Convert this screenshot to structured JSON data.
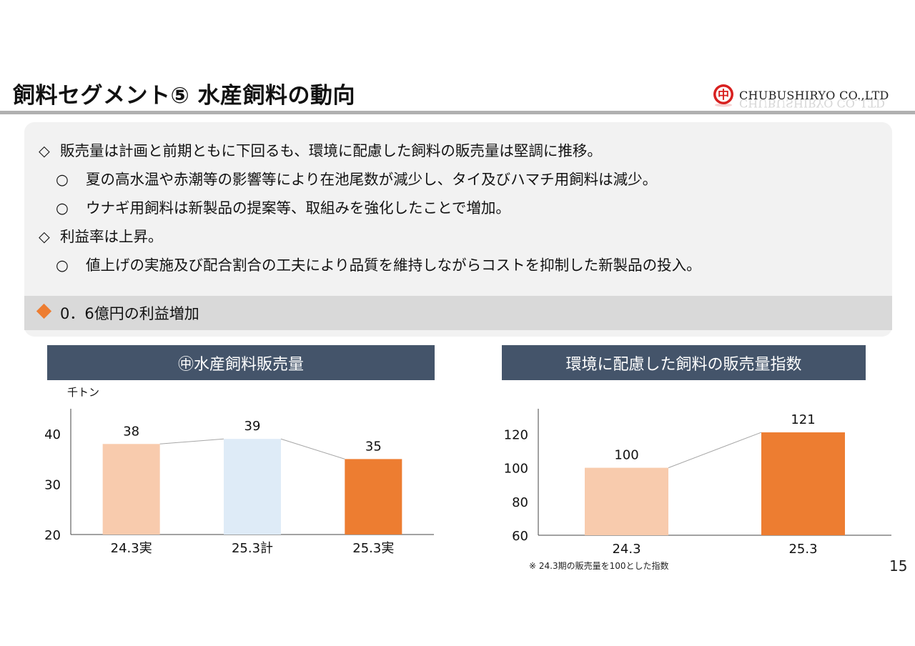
{
  "header": {
    "title": "飼料セグメント⑤ 水産飼料の動向",
    "company": "CHUBUSHIRYO CO.,LTD",
    "logo_glyph": "中",
    "logo_color": "#d8201f"
  },
  "summary": {
    "lines": [
      {
        "marker": "◇",
        "text": "販売量は計画と前期ともに下回るも、環境に配慮した飼料の販売量は堅調に推移。"
      },
      {
        "marker": "○",
        "text": "夏の高水温や赤潮等の影響等により在池尾数が減少し、タイ及びハマチ用飼料は減少。"
      },
      {
        "marker": "○",
        "text": "ウナギ用飼料は新製品の提案等、取組みを強化したことで増加。"
      },
      {
        "marker": "◇",
        "text": "利益率は上昇。"
      },
      {
        "marker": "○",
        "text": "値上げの実施及び配合割合の工夫により品質を維持しながらコストを抑制した新製品の投入。"
      }
    ],
    "highlight": "0．6億円の利益増加",
    "highlight_color": "#ed7d31"
  },
  "chart_data": [
    {
      "type": "bar",
      "title": "㊥水産飼料販売量",
      "unit_label": "千トン",
      "categories": [
        "24.3実",
        "25.3計",
        "25.3実"
      ],
      "values": [
        38,
        39,
        35
      ],
      "data_labels": [
        "38",
        "39",
        "35"
      ],
      "colors": [
        "#f8cbad",
        "#deebf7",
        "#ed7d31"
      ],
      "ylim": [
        20,
        45
      ],
      "yticks": [
        20,
        30,
        40
      ],
      "connector_lines": true,
      "grid": false
    },
    {
      "type": "bar",
      "title": "環境に配慮した飼料の販売量指数",
      "categories": [
        "24.3",
        "25.3"
      ],
      "values": [
        100,
        121
      ],
      "data_labels": [
        "100",
        "121"
      ],
      "colors": [
        "#f8cbad",
        "#ed7d31"
      ],
      "ylim": [
        60,
        135
      ],
      "yticks": [
        60,
        80,
        100,
        120
      ],
      "connector_lines": true,
      "grid": false,
      "note": "※ 24.3期の販売量を100とした指数"
    }
  ],
  "page_number": "15"
}
